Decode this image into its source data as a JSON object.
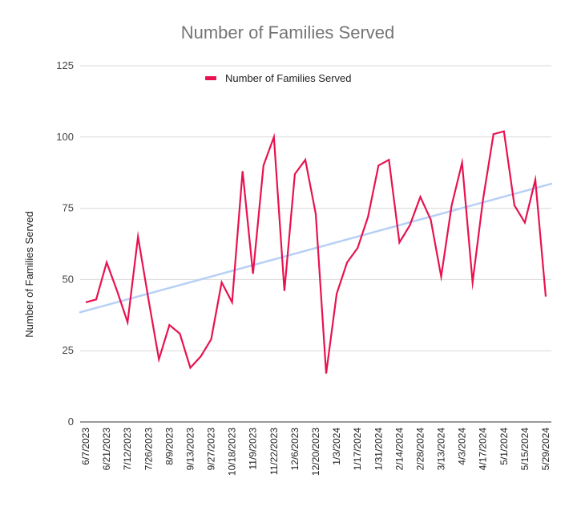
{
  "chart_data": {
    "type": "line",
    "title": "Number of Families Served",
    "xlabel": "",
    "ylabel": "Number of Families Served",
    "ylim": [
      0,
      125
    ],
    "yticks": [
      0,
      25,
      50,
      75,
      100,
      125
    ],
    "grid": true,
    "legend": {
      "position": "top",
      "entries": [
        "Number of Families Served"
      ]
    },
    "x_tick_labels": [
      "6/7/2023",
      "6/21/2023",
      "7/12/2023",
      "7/26/2023",
      "8/9/2023",
      "9/13/2023",
      "9/27/2023",
      "10/18/2023",
      "11/9/2023",
      "11/22/2023",
      "12/6/2023",
      "12/20/2023",
      "1/3/2024",
      "1/17/2024",
      "1/31/2024",
      "2/14/2024",
      "2/28/2024",
      "3/13/2024",
      "4/3/2024",
      "4/17/2024",
      "5/1/2024",
      "5/15/2024",
      "5/29/2024"
    ],
    "series": [
      {
        "name": "Number of Families Served",
        "color": "#e8124f",
        "values": [
          42,
          43,
          56,
          46,
          35,
          65,
          43,
          22,
          34,
          31,
          19,
          23,
          29,
          49,
          42,
          88,
          52,
          90,
          100,
          46,
          87,
          92,
          73,
          17,
          45,
          56,
          61,
          72,
          90,
          92,
          63,
          69,
          79,
          71,
          51,
          76,
          91,
          49,
          78,
          101,
          102,
          76,
          70,
          85,
          44
        ]
      }
    ],
    "trendline": {
      "name": "Trendline",
      "color": "#b8d0f5",
      "start": 38.5,
      "end": 83.6
    }
  }
}
